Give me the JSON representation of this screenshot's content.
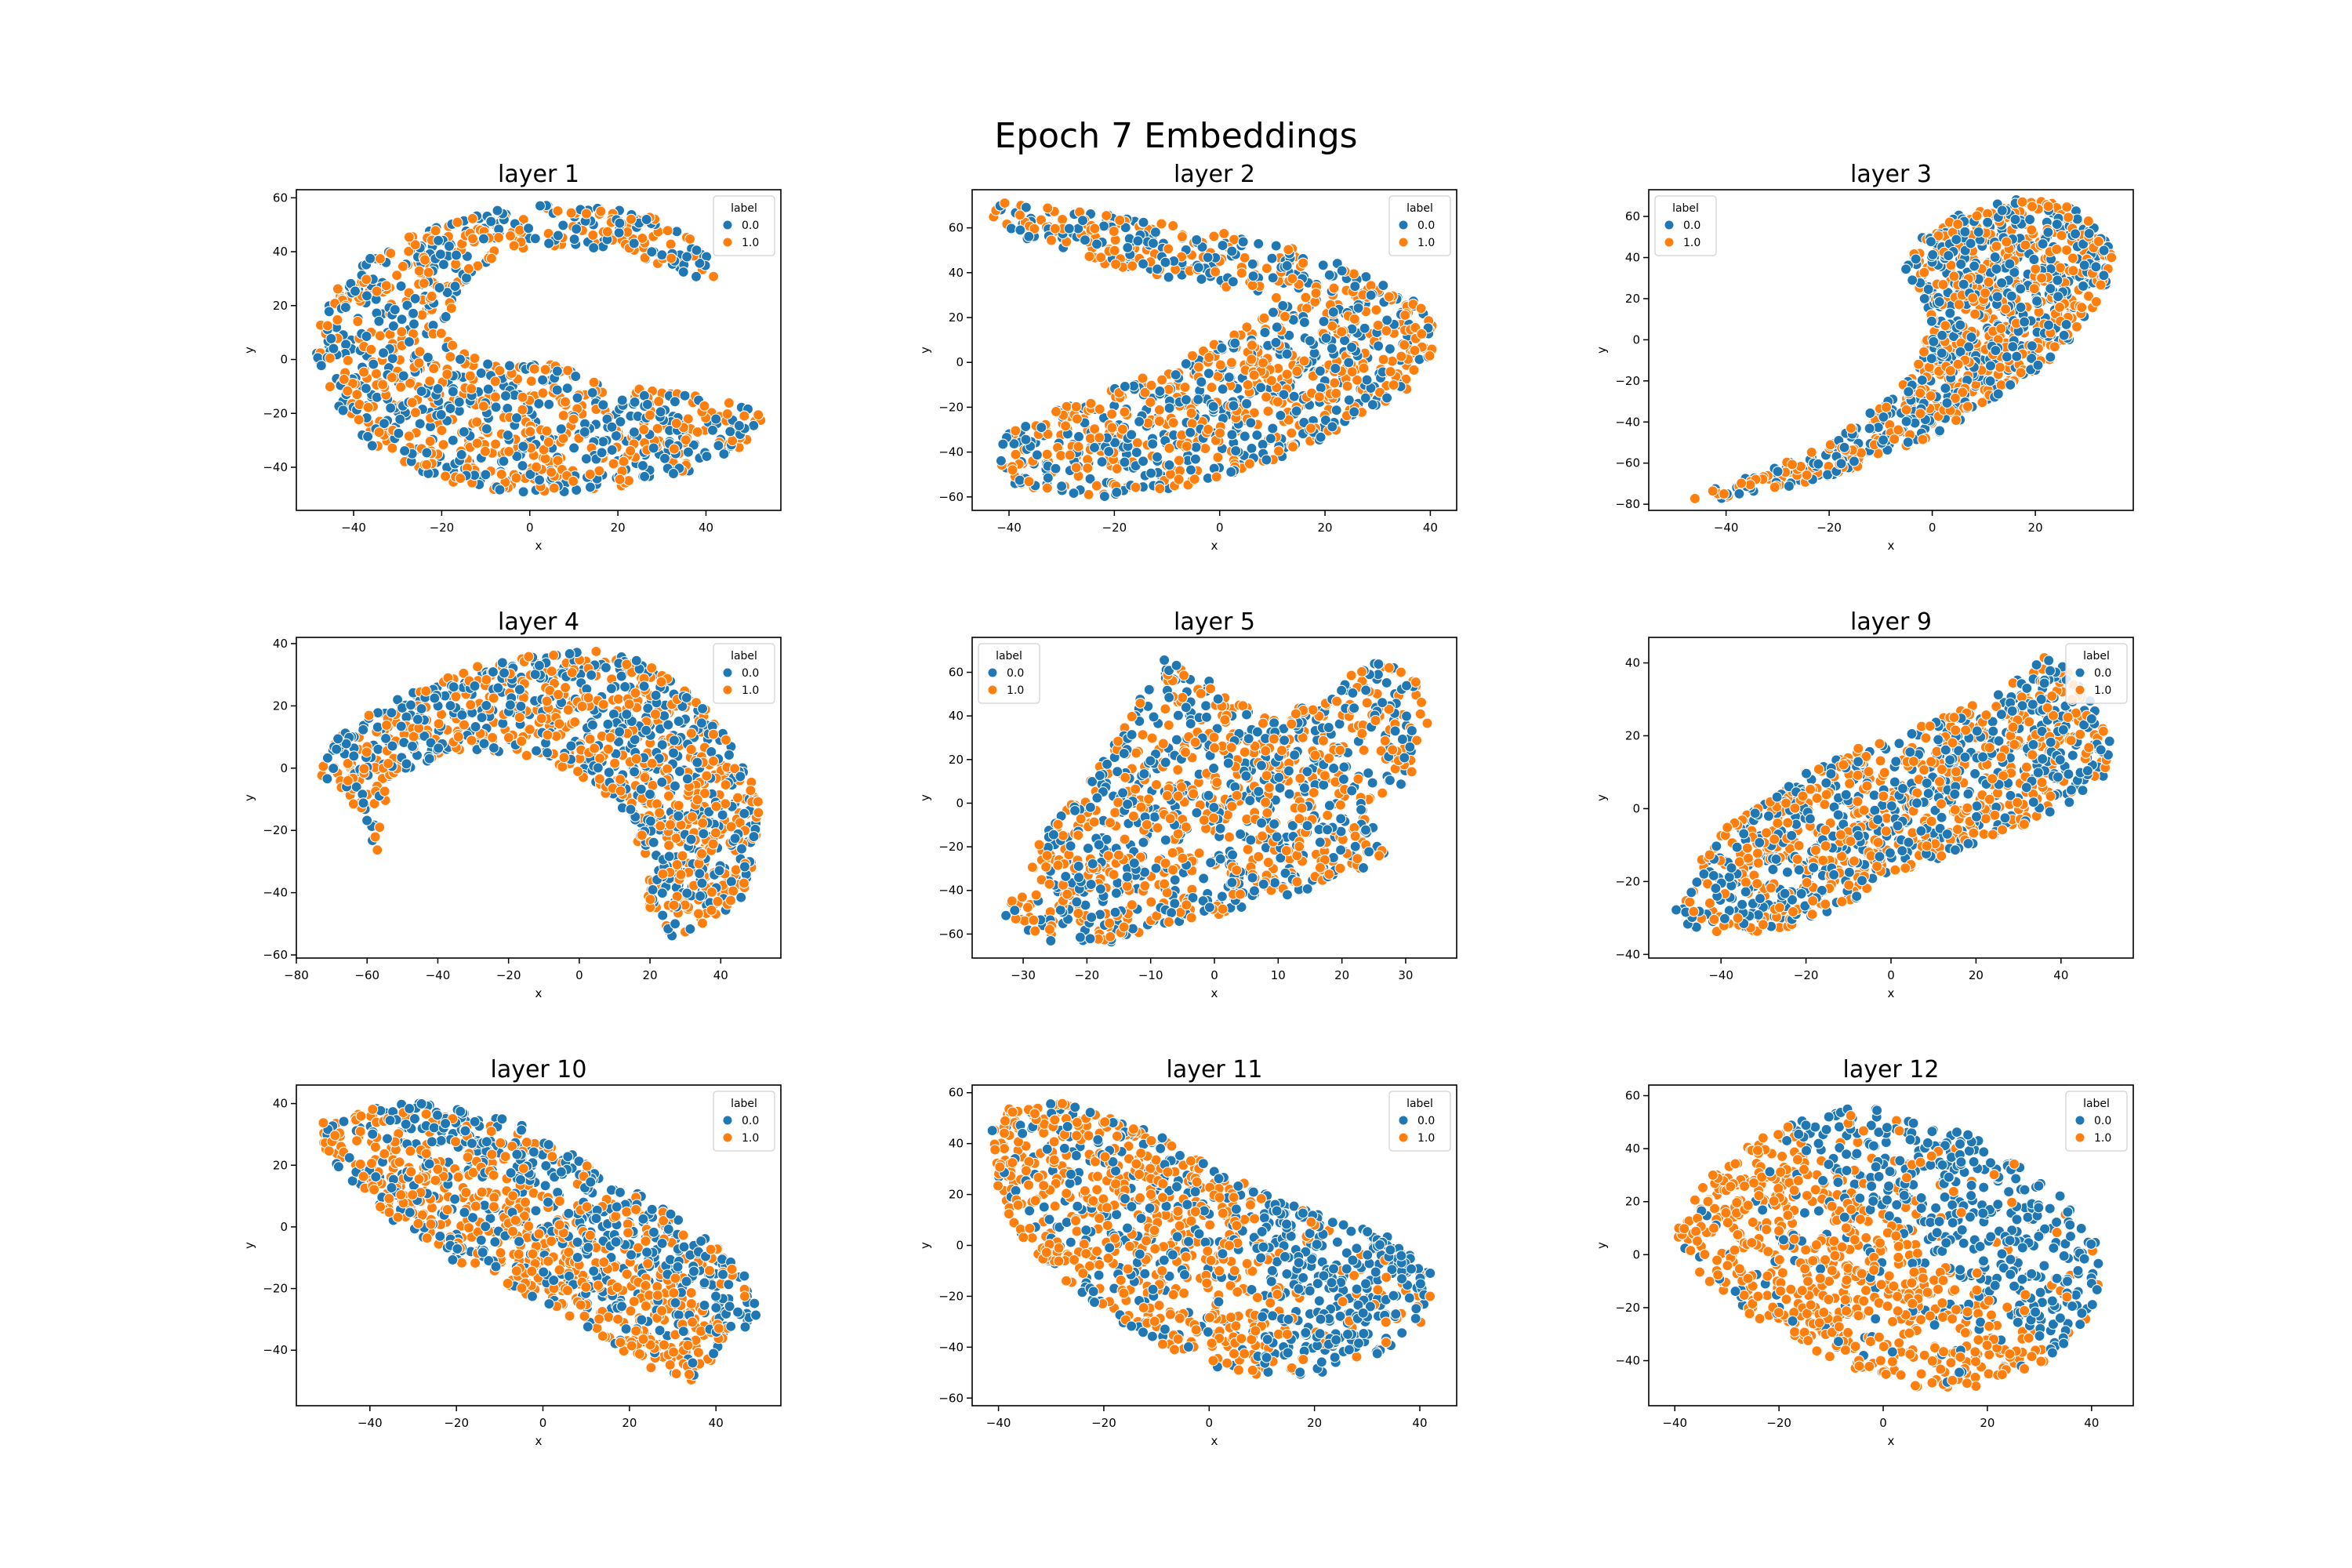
{
  "figure": {
    "suptitle": "Epoch 7 Embeddings"
  },
  "colors": {
    "class0": "#1f77b4",
    "class1": "#ff7f0e",
    "edge": "#ffffff"
  },
  "legend": {
    "title": "label",
    "entries": [
      "0.0",
      "1.0"
    ]
  },
  "axis_labels": {
    "x": "x",
    "y": "y"
  },
  "chart_data": [
    {
      "type": "scatter",
      "title": "layer 1",
      "xlabel": "x",
      "ylabel": "y",
      "xlim": [
        -53,
        57
      ],
      "ylim": [
        -56,
        63
      ],
      "xticks": [
        -40,
        -20,
        0,
        20,
        40
      ],
      "yticks": [
        -40,
        -20,
        0,
        20,
        40,
        60
      ],
      "legend_position": "top-right",
      "series": [
        {
          "name": "0.0"
        },
        {
          "name": "1.0"
        }
      ],
      "shape": [
        [
          [
            -48,
            12
          ],
          [
            -44,
            26
          ],
          [
            -36,
            38
          ],
          [
            -26,
            47
          ],
          [
            -12,
            54
          ],
          [
            2,
            58
          ],
          [
            16,
            57
          ],
          [
            28,
            53
          ],
          [
            36,
            46
          ],
          [
            41,
            38
          ],
          [
            44,
            31
          ],
          [
            40,
            29
          ],
          [
            32,
            34
          ],
          [
            22,
            39
          ],
          [
            12,
            42
          ],
          [
            0,
            42
          ],
          [
            -10,
            36
          ],
          [
            -17,
            24
          ],
          [
            -19,
            10
          ],
          [
            -16,
            3
          ],
          [
            -6,
            -2
          ],
          [
            6,
            -2
          ],
          [
            18,
            -9
          ],
          [
            30,
            -12
          ],
          [
            40,
            -14
          ],
          [
            47,
            -16
          ],
          [
            53,
            -21
          ],
          [
            52,
            -28
          ],
          [
            46,
            -35
          ],
          [
            36,
            -42
          ],
          [
            22,
            -47
          ],
          [
            8,
            -50
          ],
          [
            -8,
            -49
          ],
          [
            -22,
            -44
          ],
          [
            -34,
            -35
          ],
          [
            -42,
            -22
          ],
          [
            -46,
            -8
          ],
          [
            -49,
            3
          ]
        ]
      ]
    },
    {
      "type": "scatter",
      "title": "layer 2",
      "xlabel": "x",
      "ylabel": "y",
      "xlim": [
        -47,
        45
      ],
      "ylim": [
        -66,
        77
      ],
      "xticks": [
        -40,
        -20,
        0,
        20,
        40
      ],
      "yticks": [
        -60,
        -40,
        -20,
        0,
        20,
        40,
        60
      ],
      "legend_position": "top-right",
      "series": [
        {
          "name": "0.0"
        },
        {
          "name": "1.0"
        }
      ],
      "shape": [
        [
          [
            -42,
            72
          ],
          [
            -30,
            68
          ],
          [
            -15,
            64
          ],
          [
            0,
            58
          ],
          [
            14,
            51
          ],
          [
            24,
            44
          ],
          [
            32,
            36
          ],
          [
            38,
            26
          ],
          [
            41,
            14
          ],
          [
            40,
            0
          ],
          [
            36,
            -12
          ],
          [
            28,
            -24
          ],
          [
            18,
            -36
          ],
          [
            6,
            -48
          ],
          [
            -8,
            -56
          ],
          [
            -22,
            -60
          ],
          [
            -34,
            -58
          ],
          [
            -42,
            -52
          ],
          [
            -44,
            -42
          ],
          [
            -40,
            -30
          ],
          [
            -30,
            -20
          ],
          [
            -18,
            -10
          ],
          [
            -6,
            2
          ],
          [
            4,
            14
          ],
          [
            12,
            26
          ],
          [
            6,
            32
          ],
          [
            -6,
            36
          ],
          [
            -22,
            44
          ],
          [
            -36,
            54
          ],
          [
            -44,
            64
          ]
        ]
      ]
    },
    {
      "type": "scatter",
      "title": "layer 3",
      "xlabel": "x",
      "ylabel": "y",
      "xlim": [
        -55,
        39
      ],
      "ylim": [
        -83,
        73
      ],
      "xticks": [
        -40,
        -20,
        0,
        20
      ],
      "yticks": [
        -80,
        -60,
        -40,
        -20,
        0,
        20,
        40,
        60
      ],
      "legend_position": "top-left",
      "series": [
        {
          "name": "0.0"
        },
        {
          "name": "1.0"
        }
      ],
      "shape": [
        [
          [
            -52,
            -78
          ],
          [
            -42,
            -72
          ],
          [
            -30,
            -62
          ],
          [
            -18,
            -46
          ],
          [
            -10,
            -32
          ],
          [
            -4,
            -18
          ],
          [
            -2,
            -6
          ],
          [
            0,
            8
          ],
          [
            -2,
            22
          ],
          [
            -6,
            36
          ],
          [
            -2,
            50
          ],
          [
            6,
            62
          ],
          [
            16,
            69
          ],
          [
            26,
            66
          ],
          [
            32,
            56
          ],
          [
            35,
            42
          ],
          [
            34,
            28
          ],
          [
            30,
            10
          ],
          [
            24,
            -8
          ],
          [
            16,
            -22
          ],
          [
            8,
            -36
          ],
          [
            -2,
            -50
          ],
          [
            -14,
            -62
          ],
          [
            -28,
            -72
          ],
          [
            -42,
            -78
          ]
        ]
      ]
    },
    {
      "type": "scatter",
      "title": "layer 4",
      "xlabel": "x",
      "ylabel": "y",
      "xlim": [
        -80,
        57
      ],
      "ylim": [
        -61,
        42
      ],
      "xticks": [
        -80,
        -60,
        -40,
        -20,
        0,
        20,
        40
      ],
      "yticks": [
        -60,
        -40,
        -20,
        0,
        20,
        40
      ],
      "legend_position": "top-right",
      "series": [
        {
          "name": "0.0"
        },
        {
          "name": "1.0"
        }
      ],
      "shape": [
        [
          [
            -74,
            -2
          ],
          [
            -68,
            10
          ],
          [
            -56,
            20
          ],
          [
            -40,
            28
          ],
          [
            -26,
            34
          ],
          [
            -10,
            37
          ],
          [
            6,
            38
          ],
          [
            18,
            34
          ],
          [
            30,
            26
          ],
          [
            40,
            14
          ],
          [
            47,
            2
          ],
          [
            51,
            -12
          ],
          [
            50,
            -28
          ],
          [
            46,
            -42
          ],
          [
            38,
            -50
          ],
          [
            26,
            -54
          ],
          [
            20,
            -46
          ],
          [
            18,
            -32
          ],
          [
            14,
            -18
          ],
          [
            6,
            -6
          ],
          [
            -4,
            0
          ],
          [
            -16,
            4
          ],
          [
            -28,
            6
          ],
          [
            -40,
            4
          ],
          [
            -50,
            -2
          ],
          [
            -55,
            -12
          ],
          [
            -57,
            -28
          ],
          [
            -62,
            -14
          ],
          [
            -68,
            -6
          ]
        ]
      ]
    },
    {
      "type": "scatter",
      "title": "layer 5",
      "xlabel": "x",
      "ylabel": "y",
      "xlim": [
        -38,
        38
      ],
      "ylim": [
        -71,
        76
      ],
      "xticks": [
        -30,
        -20,
        -10,
        0,
        10,
        20,
        30
      ],
      "yticks": [
        -60,
        -40,
        -20,
        0,
        20,
        40,
        60
      ],
      "legend_position": "top-left",
      "series": [
        {
          "name": "0.0"
        },
        {
          "name": "1.0"
        }
      ],
      "shape": [
        [
          [
            -34,
            -50
          ],
          [
            -30,
            -30
          ],
          [
            -26,
            -12
          ],
          [
            -20,
            8
          ],
          [
            -16,
            26
          ],
          [
            -12,
            46
          ],
          [
            -8,
            66
          ],
          [
            -2,
            60
          ],
          [
            4,
            46
          ],
          [
            10,
            38
          ],
          [
            18,
            52
          ],
          [
            24,
            66
          ],
          [
            30,
            62
          ],
          [
            34,
            46
          ],
          [
            34,
            28
          ],
          [
            30,
            10
          ],
          [
            24,
            -6
          ],
          [
            28,
            -22
          ],
          [
            22,
            -32
          ],
          [
            12,
            -42
          ],
          [
            0,
            -52
          ],
          [
            -10,
            -60
          ],
          [
            -20,
            -66
          ],
          [
            -28,
            -62
          ]
        ]
      ]
    },
    {
      "type": "scatter",
      "title": "layer 9",
      "xlabel": "x",
      "ylabel": "y",
      "xlim": [
        -57,
        57
      ],
      "ylim": [
        -41,
        47
      ],
      "xticks": [
        -40,
        -20,
        0,
        20,
        40
      ],
      "yticks": [
        -40,
        -20,
        0,
        20,
        40
      ],
      "legend_position": "top-right",
      "series": [
        {
          "name": "0.0"
        },
        {
          "name": "1.0"
        }
      ],
      "shape": [
        [
          [
            -52,
            -28
          ],
          [
            -46,
            -16
          ],
          [
            -38,
            -4
          ],
          [
            -26,
            6
          ],
          [
            -14,
            14
          ],
          [
            0,
            20
          ],
          [
            14,
            26
          ],
          [
            26,
            32
          ],
          [
            36,
            42
          ],
          [
            42,
            38
          ],
          [
            48,
            28
          ],
          [
            52,
            18
          ],
          [
            50,
            8
          ],
          [
            40,
            0
          ],
          [
            28,
            -6
          ],
          [
            14,
            -12
          ],
          [
            0,
            -20
          ],
          [
            -14,
            -28
          ],
          [
            -28,
            -34
          ],
          [
            -42,
            -34
          ],
          [
            -50,
            -32
          ]
        ]
      ]
    },
    {
      "type": "scatter",
      "title": "layer 10",
      "xlabel": "x",
      "ylabel": "y",
      "xlim": [
        -57,
        55
      ],
      "ylim": [
        -58,
        46
      ],
      "xticks": [
        -40,
        -20,
        0,
        20,
        40
      ],
      "yticks": [
        -40,
        -20,
        0,
        20,
        40
      ],
      "legend_position": "top-right",
      "series": [
        {
          "name": "0.0"
        },
        {
          "name": "1.0"
        }
      ],
      "shape": [
        [
          [
            -52,
            34
          ],
          [
            -40,
            38
          ],
          [
            -30,
            41
          ],
          [
            -18,
            38
          ],
          [
            -6,
            34
          ],
          [
            6,
            24
          ],
          [
            18,
            14
          ],
          [
            30,
            4
          ],
          [
            40,
            -6
          ],
          [
            48,
            -16
          ],
          [
            50,
            -30
          ],
          [
            42,
            -40
          ],
          [
            34,
            -50
          ],
          [
            24,
            -46
          ],
          [
            14,
            -36
          ],
          [
            2,
            -26
          ],
          [
            -10,
            -18
          ],
          [
            -22,
            -10
          ],
          [
            -34,
            0
          ],
          [
            -44,
            14
          ],
          [
            -50,
            24
          ]
        ]
      ]
    },
    {
      "type": "scatter",
      "title": "layer 11",
      "xlabel": "x",
      "ylabel": "y",
      "xlim": [
        -45,
        47
      ],
      "ylim": [
        -63,
        63
      ],
      "xticks": [
        -40,
        -20,
        0,
        20,
        40
      ],
      "yticks": [
        -60,
        -40,
        -20,
        0,
        20,
        40,
        60
      ],
      "legend_position": "top-right",
      "series": [
        {
          "name": "0.0"
        },
        {
          "name": "1.0"
        }
      ],
      "shape": [
        [
          [
            -40,
            54
          ],
          [
            -28,
            56
          ],
          [
            -18,
            50
          ],
          [
            -8,
            42
          ],
          [
            2,
            30
          ],
          [
            14,
            18
          ],
          [
            24,
            10
          ],
          [
            34,
            4
          ],
          [
            42,
            -10
          ],
          [
            42,
            -26
          ],
          [
            36,
            -40
          ],
          [
            22,
            -50
          ],
          [
            10,
            -52
          ],
          [
            -2,
            -46
          ],
          [
            -14,
            -34
          ],
          [
            -24,
            -20
          ],
          [
            -32,
            -6
          ],
          [
            -38,
            10
          ],
          [
            -42,
            26
          ],
          [
            -42,
            42
          ]
        ]
      ]
    },
    {
      "type": "scatter",
      "title": "layer 12",
      "xlabel": "x",
      "ylabel": "y",
      "xlim": [
        -45,
        48
      ],
      "ylim": [
        -57,
        64
      ],
      "xticks": [
        -40,
        -20,
        0,
        20,
        40
      ],
      "yticks": [
        -40,
        -20,
        0,
        20,
        40,
        60
      ],
      "legend_position": "top-right",
      "series": [
        {
          "name": "0.0"
        },
        {
          "name": "1.0"
        }
      ],
      "shape": [
        [
          [
            -40,
            8
          ],
          [
            -34,
            30
          ],
          [
            -22,
            46
          ],
          [
            -8,
            56
          ],
          [
            6,
            54
          ],
          [
            18,
            44
          ],
          [
            28,
            32
          ],
          [
            36,
            20
          ],
          [
            42,
            6
          ],
          [
            42,
            -12
          ],
          [
            38,
            -28
          ],
          [
            30,
            -42
          ],
          [
            18,
            -50
          ],
          [
            4,
            -50
          ],
          [
            -8,
            -42
          ],
          [
            -18,
            -32
          ],
          [
            -28,
            -20
          ],
          [
            -36,
            -6
          ]
        ]
      ]
    }
  ]
}
